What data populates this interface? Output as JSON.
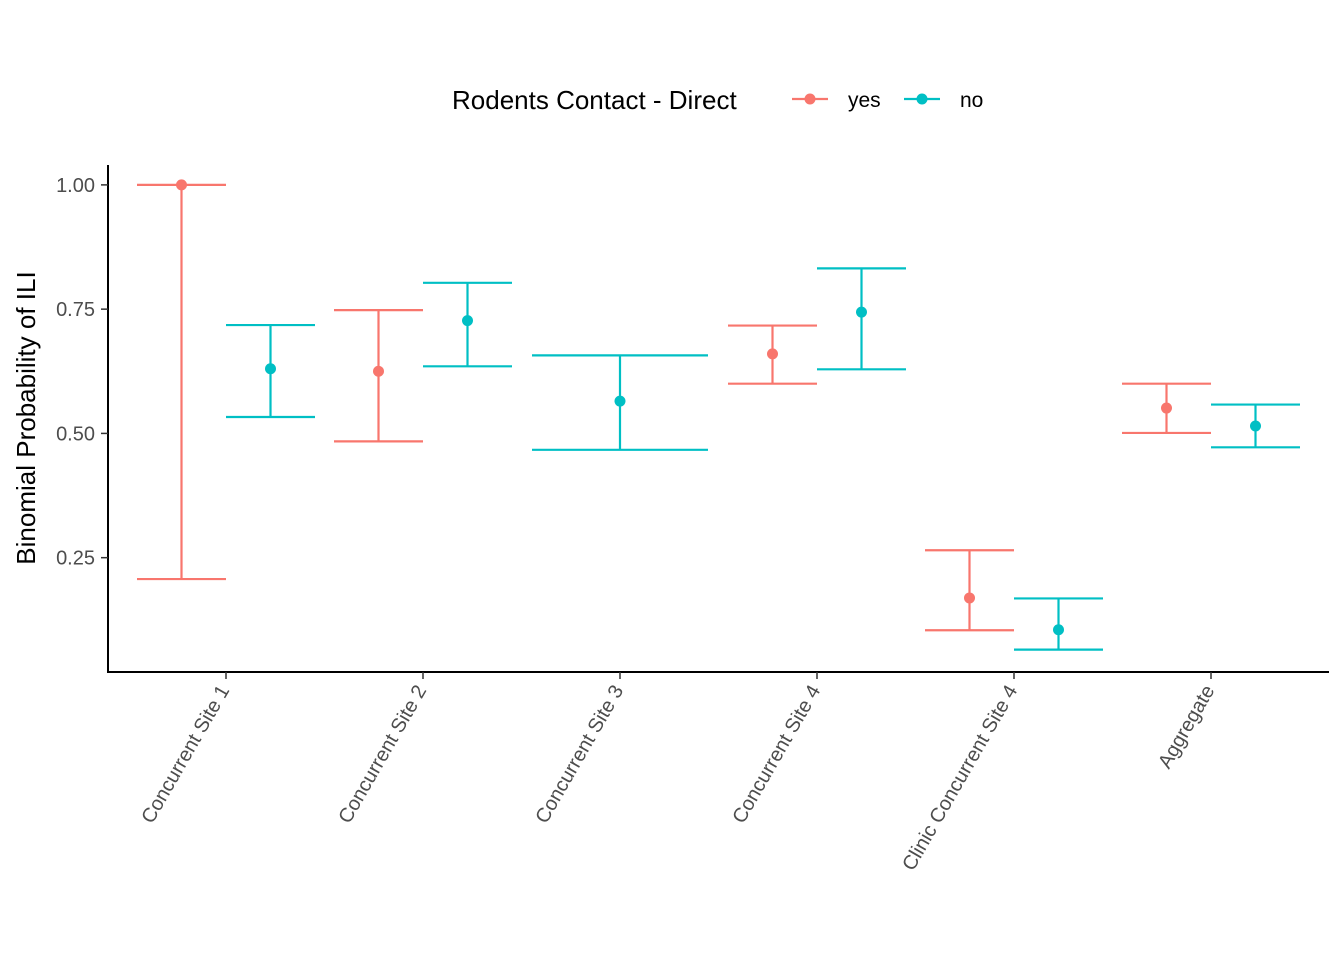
{
  "chart_data": {
    "type": "errorbar",
    "title": "",
    "xlabel": "",
    "ylabel": "Binomial Probability of ILI",
    "ylim": [
      0.02,
      1.04
    ],
    "yticks": [
      0.25,
      0.5,
      0.75,
      1.0
    ],
    "ytick_labels": [
      "0.25",
      "0.50",
      "0.75",
      "1.00"
    ],
    "categories": [
      "Concurrent Site 1",
      "Concurrent Site 2",
      "Concurrent Site 3",
      "Concurrent Site 4",
      "Clinic Concurrent Site 4",
      "Aggregate"
    ],
    "legend": {
      "title": "Rodents Contact - Direct",
      "position": "top"
    },
    "grid": false,
    "series": [
      {
        "name": "yes",
        "color": "#F8766D",
        "points": [
          {
            "category": "Concurrent Site 1",
            "estimate": 1.0,
            "lower": 0.207,
            "upper": 1.0
          },
          {
            "category": "Concurrent Site 2",
            "estimate": 0.625,
            "lower": 0.484,
            "upper": 0.748
          },
          {
            "category": "Concurrent Site 4",
            "estimate": 0.66,
            "lower": 0.6,
            "upper": 0.717
          },
          {
            "category": "Clinic Concurrent Site 4",
            "estimate": 0.169,
            "lower": 0.104,
            "upper": 0.265
          },
          {
            "category": "Aggregate",
            "estimate": 0.551,
            "lower": 0.501,
            "upper": 0.6
          }
        ]
      },
      {
        "name": "no",
        "color": "#00BFC4",
        "points": [
          {
            "category": "Concurrent Site 1",
            "estimate": 0.63,
            "lower": 0.533,
            "upper": 0.718
          },
          {
            "category": "Concurrent Site 2",
            "estimate": 0.727,
            "lower": 0.635,
            "upper": 0.803
          },
          {
            "category": "Concurrent Site 3",
            "estimate": 0.565,
            "lower": 0.467,
            "upper": 0.657
          },
          {
            "category": "Concurrent Site 4",
            "estimate": 0.744,
            "lower": 0.629,
            "upper": 0.832
          },
          {
            "category": "Clinic Concurrent Site 4",
            "estimate": 0.105,
            "lower": 0.065,
            "upper": 0.168
          },
          {
            "category": "Aggregate",
            "estimate": 0.515,
            "lower": 0.472,
            "upper": 0.558
          }
        ]
      }
    ]
  }
}
